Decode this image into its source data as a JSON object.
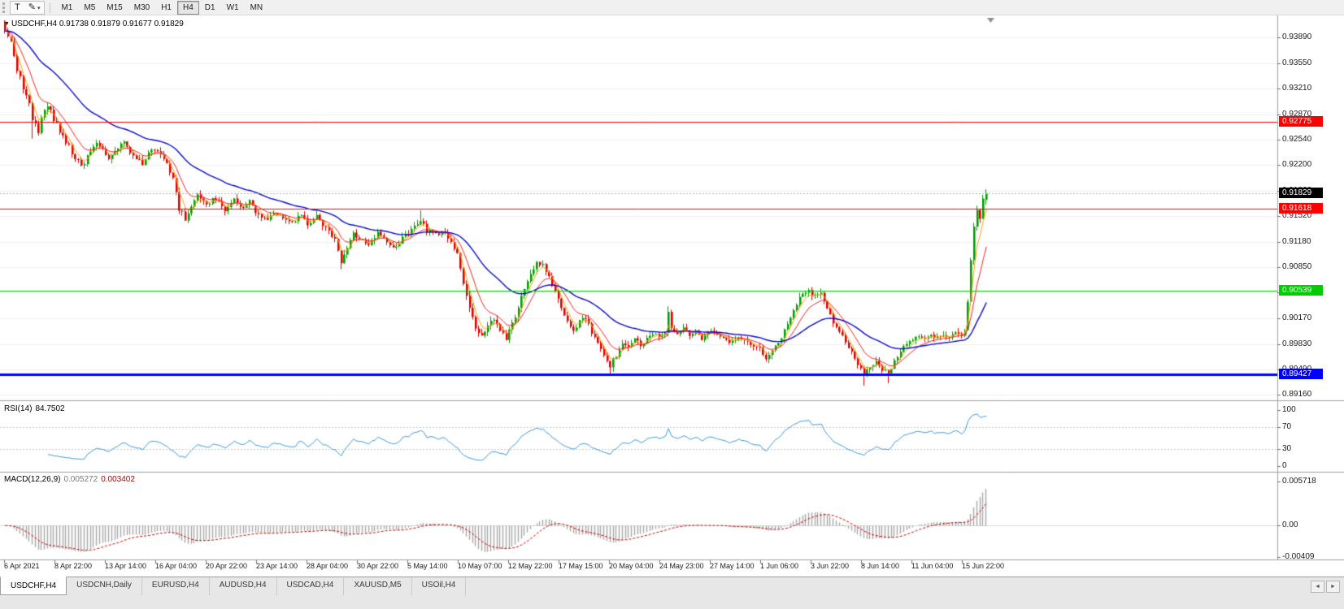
{
  "toolbar": {
    "text_tool": "T",
    "pencil_icon": "✎",
    "dropdown_caret": "▾",
    "periods": [
      "M1",
      "M5",
      "M15",
      "M30",
      "H1",
      "H4",
      "D1",
      "W1",
      "MN"
    ],
    "active_period": "H4"
  },
  "chart": {
    "expand_icon": "▼",
    "symbol_period": "USDCHF,H4",
    "ohlc": "0.91738 0.91879 0.91677 0.91829"
  },
  "chart_data": {
    "type": "candlestick",
    "symbol": "USDCHF",
    "timeframe": "H4",
    "bars": 322,
    "last_ohlc": {
      "open": 0.91738,
      "high": 0.91879,
      "low": 0.91677,
      "close": 0.91829
    },
    "visible_range": {
      "top": 0.9412,
      "bottom": 0.8912
    },
    "price_axis_ticks": [
      "0.93890",
      "0.93550",
      "0.93210",
      "0.92870",
      "0.92540",
      "0.92200",
      "0.91860",
      "0.91520",
      "0.91180",
      "0.90850",
      "0.90510",
      "0.90170",
      "0.89830",
      "0.89490",
      "0.89160"
    ],
    "time_axis_labels": [
      "6 Apr 2021",
      "8 Apr 22:00",
      "13 Apr 14:00",
      "16 Apr 04:00",
      "20 Apr 22:00",
      "23 Apr 14:00",
      "28 Apr 04:00",
      "30 Apr 22:00",
      "5 May 14:00",
      "10 May 07:00",
      "12 May 22:00",
      "17 May 15:00",
      "20 May 04:00",
      "24 May 23:00",
      "27 May 14:00",
      "1 Jun 06:00",
      "3 Jun 22:00",
      "8 Jun 14:00",
      "11 Jun 04:00",
      "15 Jun 22:00"
    ],
    "price_path": [
      [
        0,
        0.9402
      ],
      [
        2,
        0.9381
      ],
      [
        4,
        0.9348
      ],
      [
        6,
        0.9322
      ],
      [
        8,
        0.9301
      ],
      [
        9,
        0.9282
      ],
      [
        11,
        0.9262
      ],
      [
        13,
        0.9297
      ],
      [
        15,
        0.929
      ],
      [
        17,
        0.9272
      ],
      [
        20,
        0.9248
      ],
      [
        23,
        0.9231
      ],
      [
        26,
        0.922
      ],
      [
        29,
        0.9249
      ],
      [
        32,
        0.9243
      ],
      [
        34,
        0.9228
      ],
      [
        36,
        0.924
      ],
      [
        39,
        0.9252
      ],
      [
        42,
        0.9231
      ],
      [
        45,
        0.9222
      ],
      [
        47,
        0.9238
      ],
      [
        50,
        0.9241
      ],
      [
        53,
        0.9223
      ],
      [
        55,
        0.9201
      ],
      [
        57,
        0.9162
      ],
      [
        59,
        0.9149
      ],
      [
        61,
        0.9163
      ],
      [
        63,
        0.9181
      ],
      [
        66,
        0.9169
      ],
      [
        69,
        0.9176
      ],
      [
        72,
        0.916
      ],
      [
        75,
        0.9173
      ],
      [
        78,
        0.9163
      ],
      [
        80,
        0.9171
      ],
      [
        82,
        0.9157
      ],
      [
        85,
        0.9147
      ],
      [
        88,
        0.9156
      ],
      [
        91,
        0.9152
      ],
      [
        94,
        0.9146
      ],
      [
        97,
        0.9153
      ],
      [
        99,
        0.9143
      ],
      [
        102,
        0.9151
      ],
      [
        105,
        0.9136
      ],
      [
        108,
        0.9121
      ],
      [
        110,
        0.9092
      ],
      [
        112,
        0.9111
      ],
      [
        114,
        0.9129
      ],
      [
        116,
        0.9123
      ],
      [
        119,
        0.9116
      ],
      [
        122,
        0.9129
      ],
      [
        125,
        0.9119
      ],
      [
        128,
        0.9111
      ],
      [
        130,
        0.9123
      ],
      [
        132,
        0.9129
      ],
      [
        134,
        0.9137
      ],
      [
        136,
        0.9148
      ],
      [
        138,
        0.9131
      ],
      [
        140,
        0.9136
      ],
      [
        142,
        0.9129
      ],
      [
        144,
        0.9131
      ],
      [
        146,
        0.9119
      ],
      [
        148,
        0.9101
      ],
      [
        150,
        0.9062
      ],
      [
        152,
        0.9032
      ],
      [
        154,
        0.9001
      ],
      [
        156,
        0.8993
      ],
      [
        158,
        0.9006
      ],
      [
        160,
        0.9016
      ],
      [
        162,
        0.8999
      ],
      [
        164,
        0.8991
      ],
      [
        166,
        0.9009
      ],
      [
        168,
        0.9031
      ],
      [
        170,
        0.9058
      ],
      [
        172,
        0.9076
      ],
      [
        174,
        0.9091
      ],
      [
        176,
        0.9086
      ],
      [
        178,
        0.9071
      ],
      [
        180,
        0.9053
      ],
      [
        182,
        0.9031
      ],
      [
        184,
        0.9012
      ],
      [
        186,
        0.9001
      ],
      [
        188,
        0.9013
      ],
      [
        190,
        0.9016
      ],
      [
        192,
        0.8999
      ],
      [
        194,
        0.8986
      ],
      [
        196,
        0.8969
      ],
      [
        198,
        0.8954
      ],
      [
        200,
        0.8969
      ],
      [
        202,
        0.8986
      ],
      [
        204,
        0.8979
      ],
      [
        206,
        0.8991
      ],
      [
        208,
        0.8981
      ],
      [
        210,
        0.8989
      ],
      [
        212,
        0.8996
      ],
      [
        214,
        0.8991
      ],
      [
        216,
        0.8996
      ],
      [
        217,
        0.9024
      ],
      [
        218,
        0.9001
      ],
      [
        220,
        0.8996
      ],
      [
        222,
        0.9006
      ],
      [
        224,
        0.8996
      ],
      [
        226,
        0.9001
      ],
      [
        228,
        0.8991
      ],
      [
        231,
        0.8999
      ],
      [
        234,
        0.8991
      ],
      [
        237,
        0.8986
      ],
      [
        240,
        0.8993
      ],
      [
        243,
        0.8986
      ],
      [
        245,
        0.8981
      ],
      [
        247,
        0.8979
      ],
      [
        249,
        0.8961
      ],
      [
        251,
        0.8973
      ],
      [
        253,
        0.8986
      ],
      [
        255,
        0.9001
      ],
      [
        257,
        0.9019
      ],
      [
        259,
        0.9036
      ],
      [
        261,
        0.9049
      ],
      [
        263,
        0.9053
      ],
      [
        265,
        0.9046
      ],
      [
        267,
        0.9049
      ],
      [
        269,
        0.9031
      ],
      [
        271,
        0.9013
      ],
      [
        273,
        0.8999
      ],
      [
        275,
        0.8986
      ],
      [
        277,
        0.8973
      ],
      [
        279,
        0.8956
      ],
      [
        281,
        0.8943
      ],
      [
        283,
        0.8953
      ],
      [
        285,
        0.8961
      ],
      [
        287,
        0.8949
      ],
      [
        289,
        0.8945
      ],
      [
        291,
        0.8959
      ],
      [
        293,
        0.8973
      ],
      [
        295,
        0.8983
      ],
      [
        297,
        0.8989
      ],
      [
        299,
        0.8995
      ],
      [
        301,
        0.8989
      ],
      [
        303,
        0.8995
      ],
      [
        305,
        0.8991
      ],
      [
        307,
        0.8997
      ],
      [
        309,
        0.8993
      ],
      [
        311,
        0.8999
      ],
      [
        313,
        0.8997
      ],
      [
        314,
        0.9002
      ],
      [
        315,
        0.9042
      ],
      [
        316,
        0.9092
      ],
      [
        317,
        0.9136
      ],
      [
        318,
        0.9161
      ],
      [
        319,
        0.9151
      ],
      [
        320,
        0.9174
      ],
      [
        321,
        0.91829
      ]
    ],
    "wick_events": [
      {
        "bar": 9,
        "low": 0.9255
      },
      {
        "bar": 110,
        "low": 0.9082
      },
      {
        "bar": 136,
        "high": 0.916
      },
      {
        "bar": 198,
        "low": 0.8944
      },
      {
        "bar": 199,
        "low": 0.8946
      },
      {
        "bar": 217,
        "high": 0.9033
      },
      {
        "bar": 281,
        "low": 0.8928
      },
      {
        "bar": 289,
        "low": 0.8931
      }
    ],
    "horizontal_lines": [
      {
        "price": 0.92775,
        "label": "0.92775",
        "color": "#ff0000",
        "width": 1
      },
      {
        "price": 0.91618,
        "label": "0.91618",
        "color": "#ff0000",
        "width": 1
      },
      {
        "price": 0.90539,
        "label": "0.90539",
        "color": "#00cc00",
        "width": 1
      },
      {
        "price": 0.89427,
        "label": "0.89427",
        "color": "#0000ff",
        "width": 3
      }
    ],
    "current_price": {
      "value": 0.91829,
      "label": "0.91829",
      "badge_color": "#000000"
    },
    "colors": {
      "up": "#00a000",
      "down": "#e00000",
      "ma_fast": "#ffa500",
      "ma_mid": "#ff2020",
      "ma_slow": "#0b0bcc",
      "rsi": "#3d9be0",
      "macd_hist": "#a8a8a8",
      "macd_signal": "#d00000"
    }
  },
  "indicators": {
    "rsi": {
      "name": "RSI(14)",
      "value": "84.7502",
      "scale": [
        "100",
        "70",
        "30",
        "0"
      ],
      "levels": [
        70,
        30
      ]
    },
    "macd": {
      "name": "MACD(12,26,9)",
      "value_main": "0.005272",
      "value_signal": "0.003402",
      "scale": [
        "0.005718",
        "0.00",
        "-0.00409"
      ],
      "range": {
        "max": 0.005718,
        "min": -0.00409
      }
    }
  },
  "tabs": {
    "items": [
      {
        "label": "USDCHF,H4",
        "active": true
      },
      {
        "label": "USDCNH,Daily",
        "active": false
      },
      {
        "label": "EURUSD,H4",
        "active": false
      },
      {
        "label": "AUDUSD,H4",
        "active": false
      },
      {
        "label": "USDCAD,H4",
        "active": false
      },
      {
        "label": "XAUUSD,M5",
        "active": false
      },
      {
        "label": "USOil,H4",
        "active": false
      }
    ],
    "scroll_left": "◄",
    "scroll_right": "►"
  }
}
